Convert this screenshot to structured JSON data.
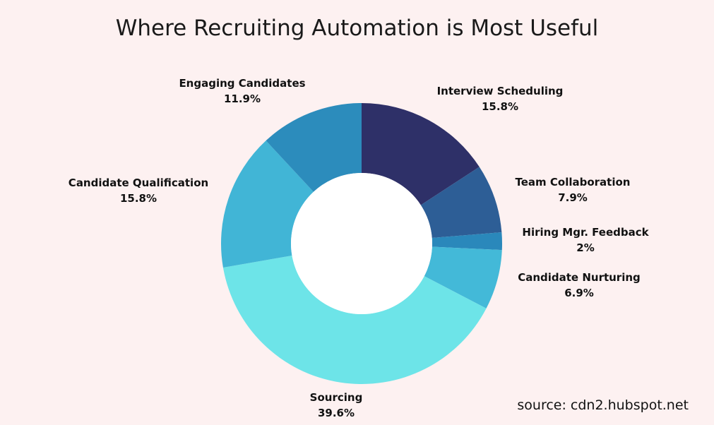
{
  "chart_data": {
    "type": "pie",
    "title": "Where Recruiting Automation is Most Useful",
    "donut": true,
    "slices": [
      {
        "label": "Interview Scheduling",
        "value": 15.8,
        "display": "15.8%",
        "color": "#2e3068"
      },
      {
        "label": "Team Collaboration",
        "value": 7.9,
        "display": "7.9%",
        "color": "#2d5e96"
      },
      {
        "label": "Hiring Mgr. Feedback",
        "value": 2.0,
        "display": "2%",
        "color": "#2a88bb"
      },
      {
        "label": "Candidate Nurturing",
        "value": 6.9,
        "display": "6.9%",
        "color": "#43b9d8"
      },
      {
        "label": "Sourcing",
        "value": 39.6,
        "display": "39.6%",
        "color": "#6de4e8"
      },
      {
        "label": "Candidate Qualification",
        "value": 15.8,
        "display": "15.8%",
        "color": "#41b5d6"
      },
      {
        "label": "Engaging Candidates",
        "value": 11.9,
        "display": "11.9%",
        "color": "#2c8cbc"
      }
    ]
  },
  "source": "source: cdn2.hubspot.net"
}
